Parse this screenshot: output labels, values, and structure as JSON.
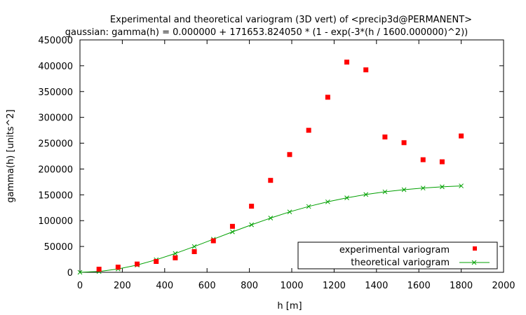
{
  "colors": {
    "background": "#ffffff",
    "axis": "#000000",
    "experimental": "#ff0000",
    "theoretical": "#00a000"
  },
  "chart_data": {
    "type": "scatter",
    "title": "Experimental and theoretical variogram (3D vert) of <precip3d@PERMANENT>",
    "subtitle": "gaussian: gamma(h) = 0.000000 + 171653.824050 * (1 - exp(-3*(h / 1600.000000)^2))",
    "xlabel": "h [m]",
    "ylabel": "gamma(h) [units^2]",
    "xlim": [
      0,
      2000
    ],
    "ylim": [
      0,
      450000
    ],
    "xticks": [
      0,
      200,
      400,
      600,
      800,
      1000,
      1200,
      1400,
      1600,
      1800,
      2000
    ],
    "yticks": [
      0,
      50000,
      100000,
      150000,
      200000,
      250000,
      300000,
      350000,
      400000,
      450000
    ],
    "grid": false,
    "legend_position": "bottom-right",
    "series": [
      {
        "name": "experimental variogram",
        "marker": "square",
        "color": "#ff0000",
        "x": [
          90,
          180,
          270,
          360,
          450,
          540,
          630,
          720,
          810,
          900,
          990,
          1080,
          1170,
          1260,
          1350,
          1440,
          1530,
          1620,
          1710,
          1800
        ],
        "y": [
          6000,
          10000,
          16000,
          21000,
          28000,
          40000,
          61000,
          89000,
          128000,
          178000,
          228000,
          275000,
          339000,
          407000,
          392000,
          262000,
          251000,
          218000,
          214000,
          264000
        ]
      },
      {
        "name": "theoretical variogram",
        "marker": "x",
        "color": "#00a000",
        "x": [
          0,
          90,
          180,
          270,
          360,
          450,
          540,
          630,
          720,
          810,
          900,
          990,
          1080,
          1170,
          1260,
          1350,
          1440,
          1530,
          1620,
          1710,
          1800
        ],
        "y": [
          0,
          1600,
          6400,
          14100,
          24300,
          36400,
          49900,
          64100,
          78300,
          92000,
          105000,
          117000,
          127500,
          136500,
          144200,
          150600,
          155800,
          159900,
          163100,
          165500,
          167300
        ]
      }
    ]
  }
}
